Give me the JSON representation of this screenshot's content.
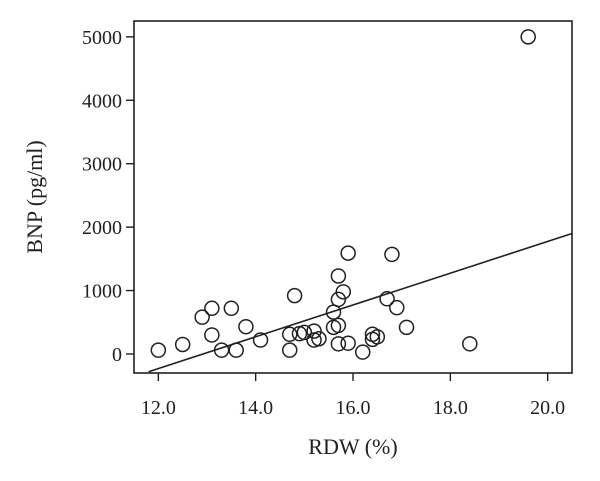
{
  "chart_data": {
    "type": "scatter",
    "xlabel": "RDW (%)",
    "ylabel": "BNP (pg/ml)",
    "xlim": [
      11.5,
      20.5
    ],
    "ylim": [
      -300,
      5250
    ],
    "x_ticks": [
      12.0,
      14.0,
      16.0,
      18.0,
      20.0
    ],
    "x_tick_labels": [
      "12.0",
      "14.0",
      "16.0",
      "18.0",
      "20.0"
    ],
    "y_ticks": [
      0,
      1000,
      2000,
      3000,
      4000,
      5000
    ],
    "y_tick_labels": [
      "0",
      "1000",
      "2000",
      "3000",
      "4000",
      "5000"
    ],
    "grid": false,
    "legend": "none",
    "points": [
      {
        "x": 12.0,
        "y": 60
      },
      {
        "x": 12.5,
        "y": 150
      },
      {
        "x": 12.9,
        "y": 580
      },
      {
        "x": 13.1,
        "y": 720
      },
      {
        "x": 13.1,
        "y": 300
      },
      {
        "x": 13.3,
        "y": 60
      },
      {
        "x": 13.5,
        "y": 720
      },
      {
        "x": 13.6,
        "y": 60
      },
      {
        "x": 13.8,
        "y": 430
      },
      {
        "x": 14.1,
        "y": 220
      },
      {
        "x": 14.7,
        "y": 60
      },
      {
        "x": 14.7,
        "y": 310
      },
      {
        "x": 14.8,
        "y": 920
      },
      {
        "x": 14.9,
        "y": 320
      },
      {
        "x": 15.0,
        "y": 340
      },
      {
        "x": 15.2,
        "y": 360
      },
      {
        "x": 15.2,
        "y": 220
      },
      {
        "x": 15.3,
        "y": 240
      },
      {
        "x": 15.6,
        "y": 420
      },
      {
        "x": 15.6,
        "y": 660
      },
      {
        "x": 15.7,
        "y": 1230
      },
      {
        "x": 15.7,
        "y": 860
      },
      {
        "x": 15.7,
        "y": 450
      },
      {
        "x": 15.7,
        "y": 160
      },
      {
        "x": 15.8,
        "y": 980
      },
      {
        "x": 15.9,
        "y": 1590
      },
      {
        "x": 15.9,
        "y": 170
      },
      {
        "x": 16.2,
        "y": 30
      },
      {
        "x": 16.4,
        "y": 310
      },
      {
        "x": 16.4,
        "y": 230
      },
      {
        "x": 16.5,
        "y": 270
      },
      {
        "x": 16.7,
        "y": 870
      },
      {
        "x": 16.8,
        "y": 1570
      },
      {
        "x": 16.9,
        "y": 730
      },
      {
        "x": 17.1,
        "y": 420
      },
      {
        "x": 18.4,
        "y": 160
      },
      {
        "x": 19.6,
        "y": 5000
      }
    ],
    "trend_line": {
      "x": [
        11.8,
        20.5
      ],
      "y": [
        -280,
        1900
      ]
    }
  }
}
